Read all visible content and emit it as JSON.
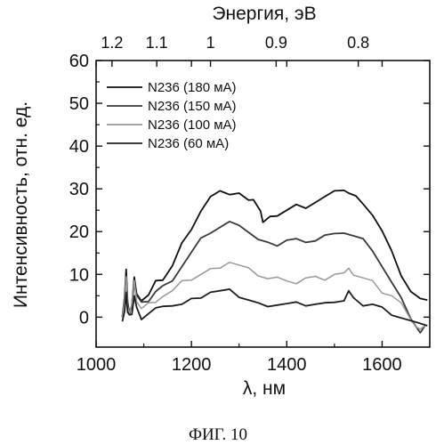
{
  "chart_data": {
    "type": "line",
    "xlabel": "λ, нм",
    "ylabel": "Интенсивность,  отн. ед.",
    "top_xlabel": "Энергия, эВ",
    "xlim": [
      1000,
      1700
    ],
    "ylim": [
      -7,
      60
    ],
    "x_ticks": [
      "1000",
      "1200",
      "1400",
      "1600"
    ],
    "y_ticks": [
      "0",
      "10",
      "20",
      "30",
      "40",
      "50",
      "60"
    ],
    "top_ticks": [
      "1.2",
      "1.1",
      "1",
      "0.9",
      "0.8"
    ],
    "legend_position": "top-left",
    "grid": false,
    "series": [
      {
        "name": "N236 (180 мА)",
        "color": "#111111",
        "points": [
          [
            1055,
            0
          ],
          [
            1060,
            5
          ],
          [
            1063,
            11
          ],
          [
            1066,
            3
          ],
          [
            1070,
            1
          ],
          [
            1075,
            3
          ],
          [
            1080,
            9
          ],
          [
            1085,
            6
          ],
          [
            1095,
            4
          ],
          [
            1110,
            5
          ],
          [
            1125,
            8
          ],
          [
            1140,
            9
          ],
          [
            1160,
            12
          ],
          [
            1180,
            17
          ],
          [
            1200,
            21
          ],
          [
            1220,
            25
          ],
          [
            1240,
            28
          ],
          [
            1260,
            29
          ],
          [
            1280,
            29
          ],
          [
            1300,
            29
          ],
          [
            1320,
            27
          ],
          [
            1330,
            28
          ],
          [
            1345,
            25
          ],
          [
            1350,
            22
          ],
          [
            1365,
            23
          ],
          [
            1380,
            24
          ],
          [
            1400,
            25
          ],
          [
            1420,
            26
          ],
          [
            1440,
            26
          ],
          [
            1460,
            27
          ],
          [
            1480,
            28
          ],
          [
            1500,
            29
          ],
          [
            1520,
            30
          ],
          [
            1530,
            29
          ],
          [
            1545,
            28
          ],
          [
            1560,
            27
          ],
          [
            1580,
            24
          ],
          [
            1600,
            20
          ],
          [
            1620,
            15
          ],
          [
            1640,
            10
          ],
          [
            1660,
            6
          ],
          [
            1680,
            4
          ],
          [
            1695,
            4
          ]
        ]
      },
      {
        "name": "N236 (150 мА)",
        "color": "#3a3a3a",
        "points": [
          [
            1055,
            0
          ],
          [
            1060,
            4
          ],
          [
            1063,
            10
          ],
          [
            1066,
            3
          ],
          [
            1070,
            1
          ],
          [
            1075,
            3
          ],
          [
            1080,
            8
          ],
          [
            1085,
            5
          ],
          [
            1095,
            3
          ],
          [
            1110,
            4
          ],
          [
            1125,
            6
          ],
          [
            1140,
            7
          ],
          [
            1160,
            9
          ],
          [
            1180,
            12
          ],
          [
            1200,
            15
          ],
          [
            1220,
            18
          ],
          [
            1240,
            20
          ],
          [
            1260,
            21
          ],
          [
            1280,
            22
          ],
          [
            1300,
            22
          ],
          [
            1320,
            20
          ],
          [
            1340,
            18
          ],
          [
            1360,
            17
          ],
          [
            1380,
            17
          ],
          [
            1400,
            18
          ],
          [
            1420,
            18
          ],
          [
            1440,
            18
          ],
          [
            1460,
            18
          ],
          [
            1480,
            19
          ],
          [
            1500,
            19
          ],
          [
            1520,
            20
          ],
          [
            1540,
            19
          ],
          [
            1560,
            18
          ],
          [
            1580,
            16
          ],
          [
            1600,
            12
          ],
          [
            1620,
            8
          ],
          [
            1640,
            4
          ],
          [
            1660,
            0
          ],
          [
            1670,
            -2
          ],
          [
            1680,
            -4
          ],
          [
            1690,
            -2
          ]
        ]
      },
      {
        "name": "N236 (100 мА)",
        "color": "#9a9a9a",
        "points": [
          [
            1055,
            0
          ],
          [
            1060,
            4
          ],
          [
            1063,
            9
          ],
          [
            1066,
            3
          ],
          [
            1070,
            1
          ],
          [
            1075,
            3
          ],
          [
            1080,
            8
          ],
          [
            1085,
            4
          ],
          [
            1095,
            2
          ],
          [
            1110,
            3
          ],
          [
            1125,
            4
          ],
          [
            1140,
            5
          ],
          [
            1160,
            6
          ],
          [
            1180,
            8
          ],
          [
            1200,
            9
          ],
          [
            1220,
            10
          ],
          [
            1240,
            11
          ],
          [
            1260,
            12
          ],
          [
            1280,
            13
          ],
          [
            1300,
            12
          ],
          [
            1320,
            11
          ],
          [
            1340,
            10
          ],
          [
            1360,
            9
          ],
          [
            1380,
            9
          ],
          [
            1400,
            9
          ],
          [
            1420,
            8
          ],
          [
            1440,
            9
          ],
          [
            1460,
            9
          ],
          [
            1480,
            9
          ],
          [
            1500,
            10
          ],
          [
            1520,
            10
          ],
          [
            1530,
            12
          ],
          [
            1540,
            10
          ],
          [
            1560,
            9
          ],
          [
            1580,
            8
          ],
          [
            1600,
            6
          ],
          [
            1620,
            5
          ],
          [
            1640,
            3
          ],
          [
            1660,
            0
          ],
          [
            1670,
            -2
          ],
          [
            1680,
            -3
          ],
          [
            1690,
            -2
          ]
        ]
      },
      {
        "name": "N236 (60 мА)",
        "color": "#1e1e1e",
        "points": [
          [
            1055,
            -1
          ],
          [
            1060,
            2
          ],
          [
            1063,
            6
          ],
          [
            1066,
            1
          ],
          [
            1070,
            0
          ],
          [
            1075,
            1
          ],
          [
            1080,
            5
          ],
          [
            1085,
            2
          ],
          [
            1095,
            0
          ],
          [
            1110,
            1
          ],
          [
            1125,
            2
          ],
          [
            1140,
            2
          ],
          [
            1160,
            3
          ],
          [
            1180,
            3
          ],
          [
            1200,
            4
          ],
          [
            1220,
            5
          ],
          [
            1240,
            6
          ],
          [
            1260,
            6
          ],
          [
            1280,
            6
          ],
          [
            1300,
            5
          ],
          [
            1320,
            4
          ],
          [
            1340,
            3
          ],
          [
            1360,
            3
          ],
          [
            1380,
            3
          ],
          [
            1400,
            3
          ],
          [
            1420,
            3
          ],
          [
            1440,
            3
          ],
          [
            1460,
            3
          ],
          [
            1480,
            3
          ],
          [
            1500,
            4
          ],
          [
            1520,
            4
          ],
          [
            1530,
            6
          ],
          [
            1540,
            4
          ],
          [
            1560,
            3
          ],
          [
            1580,
            3
          ],
          [
            1600,
            2
          ],
          [
            1620,
            1
          ],
          [
            1640,
            0
          ],
          [
            1660,
            -1
          ],
          [
            1680,
            -2
          ],
          [
            1695,
            -2
          ]
        ]
      }
    ]
  },
  "caption": "ФИГ. 10"
}
